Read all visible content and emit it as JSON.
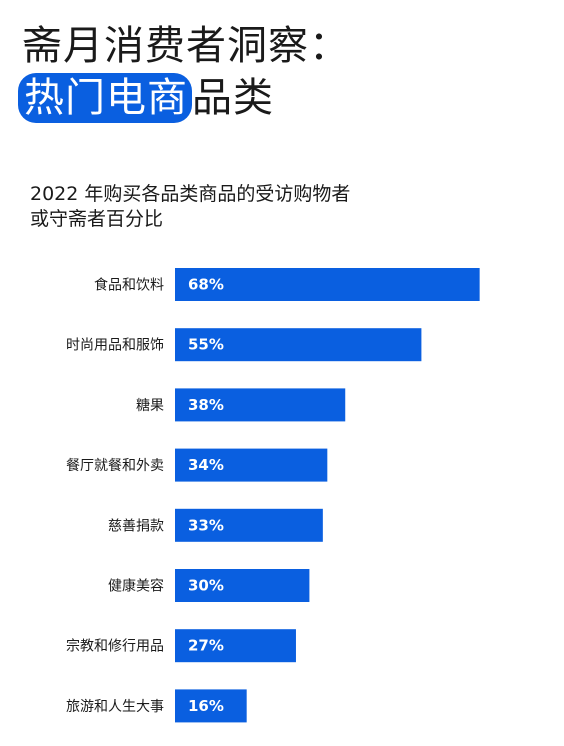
{
  "header": {
    "title_line1": "斋月消费者洞察：",
    "title_highlight": "热门电商",
    "title_rest": "品类"
  },
  "accent_color": "#0a5fe0",
  "chart_data": {
    "type": "bar",
    "orientation": "horizontal",
    "subtitle_line1": "2022  年购买各品类商品的受访购物者",
    "subtitle_line2": "或守斋者百分比",
    "categories": [
      "食品和饮料",
      "时尚用品和服饰",
      "糖果",
      "餐厅就餐和外卖",
      "慈善捐款",
      "健康美容",
      "宗教和修行用品",
      "旅游和人生大事"
    ],
    "values": [
      68,
      55,
      38,
      34,
      33,
      30,
      27,
      16
    ],
    "value_labels": [
      "68%",
      "55%",
      "38%",
      "34%",
      "33%",
      "30%",
      "27%",
      "16%"
    ],
    "xlim": [
      0,
      100
    ],
    "unit": "%",
    "grid": false,
    "legend": "none",
    "bar_color": "#0a5fe0"
  }
}
